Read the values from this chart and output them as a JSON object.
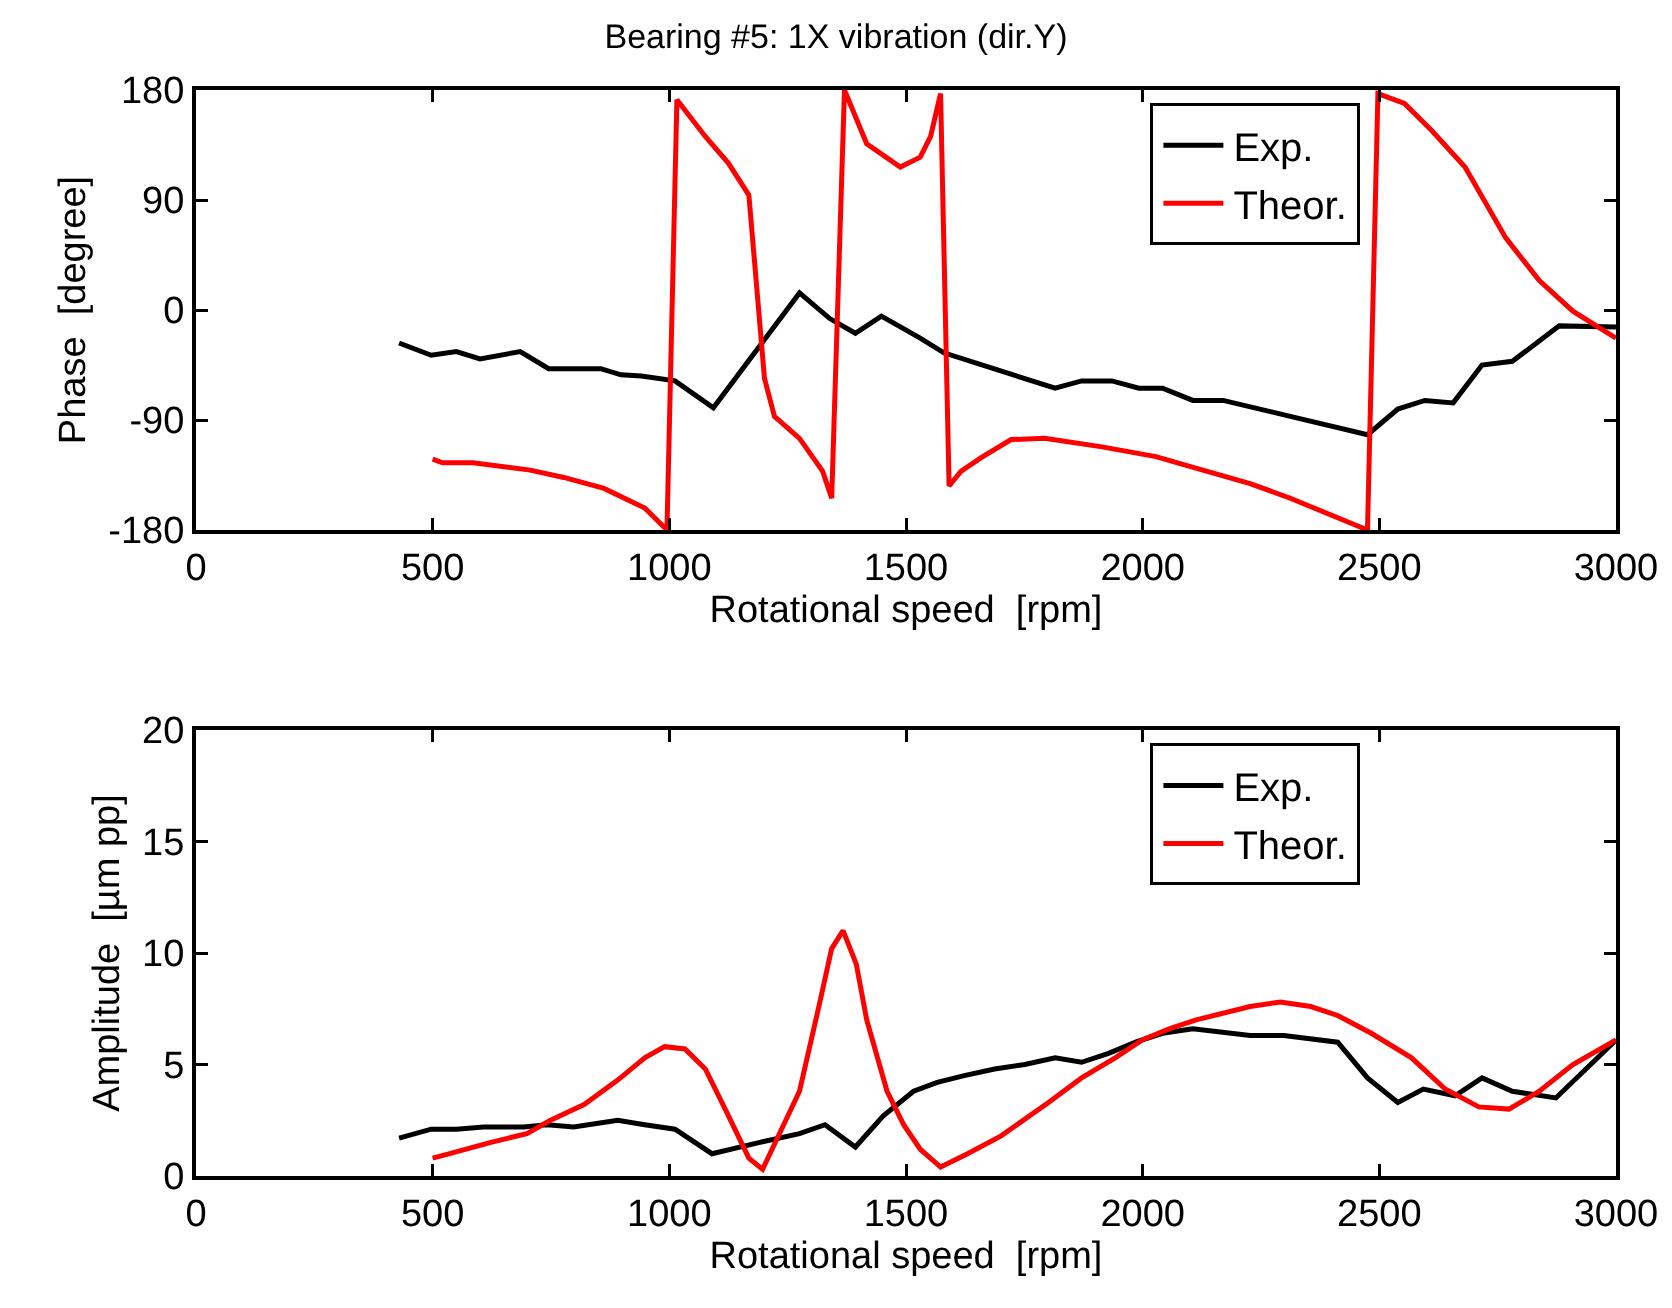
{
  "chart_data": [
    {
      "type": "line",
      "title": "Bearing #5: 1X vibration (dir.Y)",
      "xlabel": "Rotational speed  [rpm]",
      "ylabel": "Phase  [degree]",
      "xlim": [
        0,
        3000
      ],
      "xticks": [
        0,
        500,
        1000,
        1500,
        2000,
        2500,
        3000
      ],
      "ylim": [
        -180,
        180
      ],
      "yticks": [
        -180,
        -90,
        0,
        90,
        180
      ],
      "grid": false,
      "legend": "top right",
      "marker": "none",
      "line_style": "solid",
      "series": [
        {
          "name": "Exp.",
          "color": "#000000",
          "x": [
            429,
            497,
            550,
            600,
            685,
            745,
            855,
            898,
            941,
            1012,
            1093,
            1275,
            1339,
            1393,
            1448,
            1530,
            1580,
            1815,
            1871,
            1935,
            1992,
            2042,
            2106,
            2170,
            2312,
            2475,
            2539,
            2596,
            2656,
            2717,
            2781,
            2880,
            3000
          ],
          "values": [
            -27,
            -37,
            -34,
            -40,
            -34,
            -48,
            -48,
            -53,
            -54,
            -58,
            -80,
            14,
            -7,
            -19,
            -5,
            -23,
            -35,
            -64,
            -58,
            -58,
            -64,
            -64,
            -74,
            -74,
            -87,
            -102,
            -81,
            -74,
            -76,
            -45,
            -42,
            -13,
            -14
          ]
        },
        {
          "name": "Theor.",
          "color": "#ff0000",
          "x": [
            500,
            521,
            585,
            706,
            777,
            862,
            948,
            995,
            1016,
            1076,
            1125,
            1168,
            1201,
            1222,
            1275,
            1324,
            1343,
            1370,
            1417,
            1488,
            1530,
            1552,
            1573,
            1591,
            1616,
            1658,
            1722,
            1793,
            1914,
            2028,
            2127,
            2227,
            2312,
            2412,
            2475,
            2497,
            2553,
            2610,
            2681,
            2767,
            2838,
            2909,
            3000
          ],
          "values": [
            -122,
            -125,
            -125,
            -131,
            -137,
            -146,
            -162,
            -180,
            172,
            142,
            120,
            94,
            -56,
            -87,
            -105,
            -132,
            -154,
            180,
            136,
            117,
            125,
            142,
            177,
            -144,
            -132,
            -121,
            -106,
            -105,
            -112,
            -120,
            -131,
            -142,
            -154,
            -170,
            -180,
            177,
            169,
            147,
            117,
            59,
            24,
            -1,
            -23
          ]
        }
      ]
    },
    {
      "type": "line",
      "xlabel": "Rotational speed  [rpm]",
      "ylabel": "Amplitude  [µm pp]",
      "xlim": [
        0,
        3000
      ],
      "xticks": [
        0,
        500,
        1000,
        1500,
        2000,
        2500,
        3000
      ],
      "ylim": [
        0,
        20
      ],
      "yticks": [
        0,
        5,
        10,
        15,
        20
      ],
      "grid": false,
      "legend": "top right",
      "marker": "none",
      "line_style": "solid",
      "series": [
        {
          "name": "Exp.",
          "color": "#000000",
          "x": [
            429,
            497,
            550,
            607,
            692,
            742,
            798,
            891,
            948,
            1012,
            1090,
            1189,
            1275,
            1329,
            1393,
            1452,
            1516,
            1566,
            1623,
            1687,
            1751,
            1815,
            1871,
            1928,
            1985,
            2042,
            2106,
            2227,
            2298,
            2412,
            2475,
            2539,
            2593,
            2660,
            2717,
            2781,
            2873,
            3000
          ],
          "values": [
            1.7,
            2.1,
            2.1,
            2.2,
            2.2,
            2.3,
            2.2,
            2.5,
            2.3,
            2.1,
            1.0,
            1.5,
            1.9,
            2.3,
            1.3,
            2.7,
            3.8,
            4.2,
            4.5,
            4.8,
            5.0,
            5.3,
            5.1,
            5.5,
            6.0,
            6.4,
            6.6,
            6.3,
            6.3,
            6.0,
            4.4,
            3.3,
            3.9,
            3.6,
            4.4,
            3.8,
            3.5,
            6.1
          ]
        },
        {
          "name": "Theor.",
          "color": "#ff0000",
          "x": [
            500,
            536,
            621,
            699,
            749,
            820,
            891,
            948,
            990,
            1033,
            1076,
            1118,
            1168,
            1197,
            1275,
            1317,
            1343,
            1367,
            1395,
            1417,
            1460,
            1495,
            1530,
            1573,
            1630,
            1701,
            1801,
            1871,
            1942,
            1999,
            2056,
            2113,
            2227,
            2291,
            2355,
            2412,
            2483,
            2568,
            2639,
            2710,
            2774,
            2838,
            2909,
            3000
          ],
          "values": [
            0.8,
            1.0,
            1.5,
            1.9,
            2.5,
            3.2,
            4.3,
            5.3,
            5.8,
            5.7,
            4.8,
            3.0,
            0.8,
            0.3,
            3.8,
            7.7,
            10.2,
            11.0,
            9.5,
            7.0,
            3.8,
            2.3,
            1.2,
            0.4,
            1.0,
            1.8,
            3.3,
            4.4,
            5.3,
            6.1,
            6.6,
            7.0,
            7.6,
            7.8,
            7.6,
            7.2,
            6.4,
            5.3,
            3.9,
            3.1,
            3.0,
            3.8,
            5.0,
            6.1
          ]
        }
      ]
    }
  ]
}
